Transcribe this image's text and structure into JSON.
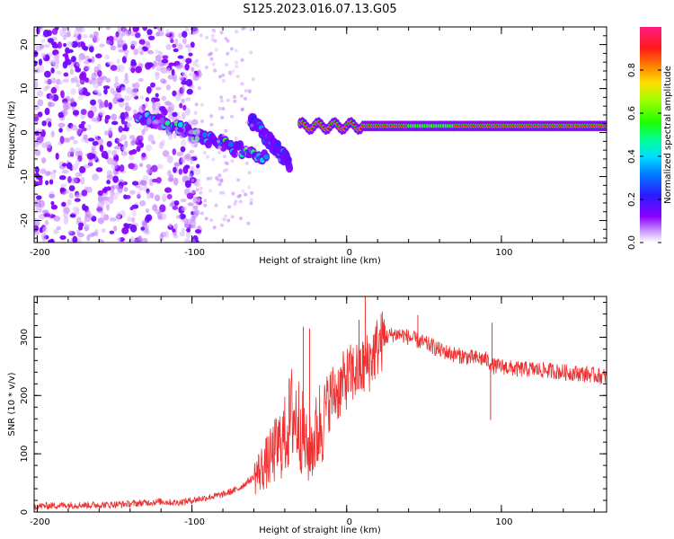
{
  "figure": {
    "title": "S125.2023.016.07.13.G05"
  },
  "chart_data": [
    {
      "type": "heatmap",
      "name": "spectrogram",
      "xlabel": "Height of straight line (km)",
      "ylabel": "Frequency (Hz)",
      "xlim": [
        -202,
        168
      ],
      "ylim": [
        -25,
        24
      ],
      "xticks": [
        -200,
        -100,
        0,
        100
      ],
      "yticks": [
        -20,
        -10,
        0,
        10,
        20
      ],
      "colorbar": {
        "label": "Normalized spectral amplitude",
        "range": [
          0,
          1
        ],
        "ticks": [
          0.0,
          0.2,
          0.4,
          0.6,
          0.8
        ]
      },
      "features": [
        {
          "name": "stable carrier line",
          "x_range": [
            -30,
            168
          ],
          "frequency_hz": 1.5,
          "amplitude": 0.9
        },
        {
          "name": "descending branch",
          "x_range": [
            -135,
            -52
          ],
          "frequency_hz_range": [
            4,
            -6
          ],
          "amplitude": 0.5
        },
        {
          "name": "descending branch",
          "x_range": [
            -62,
            -37
          ],
          "frequency_hz_range": [
            3,
            -7
          ],
          "amplitude": 0.35
        },
        {
          "name": "diffuse noise",
          "x_range": [
            -202,
            -95
          ],
          "frequency_hz_range": [
            -25,
            24
          ],
          "amplitude": 0.2
        }
      ]
    },
    {
      "type": "line",
      "name": "snr",
      "xlabel": "Height of straight line (km)",
      "ylabel": "SNR (10 * v/v)",
      "xlim": [
        -202,
        168
      ],
      "ylim": [
        0,
        370
      ],
      "xticks": [
        -200,
        -100,
        0,
        100
      ],
      "yticks": [
        0,
        100,
        200,
        300
      ],
      "color": "#ee3030",
      "series": [
        {
          "name": "SNR",
          "x": [
            -202,
            -180,
            -160,
            -140,
            -120,
            -110,
            -100,
            -90,
            -80,
            -70,
            -60,
            -50,
            -40,
            -35,
            -30,
            -25,
            -20,
            -15,
            -10,
            -5,
            0,
            5,
            10,
            15,
            20,
            25,
            30,
            35,
            40,
            45,
            50,
            55,
            60,
            70,
            80,
            90,
            95,
            100,
            110,
            120,
            130,
            140,
            150,
            160,
            168
          ],
          "y": [
            10,
            12,
            12,
            14,
            18,
            16,
            20,
            25,
            30,
            40,
            60,
            90,
            130,
            170,
            150,
            100,
            130,
            170,
            200,
            210,
            230,
            240,
            245,
            260,
            285,
            300,
            305,
            305,
            300,
            295,
            290,
            285,
            278,
            270,
            265,
            262,
            250,
            250,
            245,
            245,
            243,
            240,
            238,
            235,
            232
          ]
        }
      ],
      "spikes": [
        {
          "x": -28,
          "y": 318
        },
        {
          "x": -24,
          "y": 315
        },
        {
          "x": 8,
          "y": 330
        },
        {
          "x": 12,
          "y": 370
        },
        {
          "x": 46,
          "y": 338
        },
        {
          "x": 94,
          "y": 325
        },
        {
          "x": 93,
          "y": 158
        }
      ]
    }
  ]
}
